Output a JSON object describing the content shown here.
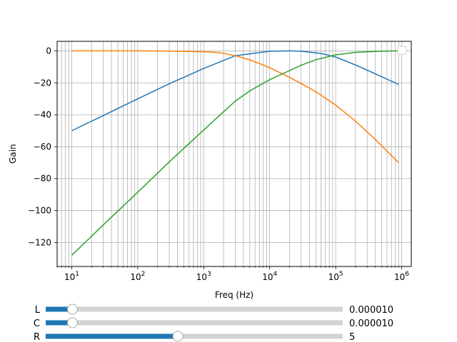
{
  "chart_data": {
    "type": "line",
    "title": "",
    "xlabel": "Freq (Hz)",
    "ylabel": "Gain",
    "xscale": "log",
    "xlim": [
      6,
      1400000
    ],
    "ylim": [
      -135,
      6
    ],
    "x_ticks": [
      10,
      100,
      1000,
      10000,
      100000,
      1000000
    ],
    "x_tick_labels": [
      {
        "base": "10",
        "exp": "1"
      },
      {
        "base": "10",
        "exp": "2"
      },
      {
        "base": "10",
        "exp": "3"
      },
      {
        "base": "10",
        "exp": "4"
      },
      {
        "base": "10",
        "exp": "5"
      },
      {
        "base": "10",
        "exp": "6"
      }
    ],
    "y_ticks": [
      0,
      -20,
      -40,
      -60,
      -80,
      -100,
      -120
    ],
    "y_tick_labels": [
      "0",
      "−20",
      "−40",
      "−60",
      "−80",
      "−100",
      "−120"
    ],
    "grid": true,
    "legend": "top-right",
    "series": [
      {
        "color": "#1f77b4",
        "x": [
          10,
          30,
          100,
          300,
          1000,
          3000,
          10000,
          20000,
          30000,
          60000,
          100000,
          200000,
          400000,
          900000
        ],
        "y": [
          -50,
          -40.5,
          -30,
          -20.6,
          -11,
          -3,
          -0.2,
          0,
          -0.2,
          -1.6,
          -3.8,
          -8.8,
          -14.4,
          -21
        ]
      },
      {
        "color": "#ff7f0e",
        "x": [
          10,
          100,
          300,
          1000,
          1500,
          2000,
          3000,
          5000,
          7000,
          10000,
          20000,
          30000,
          50000,
          100000,
          200000,
          400000,
          900000
        ],
        "y": [
          0,
          0,
          -0.1,
          -0.5,
          -0.9,
          -1.5,
          -3,
          -5.6,
          -7.9,
          -10.5,
          -16.6,
          -20.4,
          -25.6,
          -33.9,
          -44,
          -55.5,
          -70
        ]
      },
      {
        "color": "#2ca02c",
        "x": [
          10,
          30,
          100,
          300,
          1000,
          2000,
          3000,
          5000,
          10000,
          20000,
          30000,
          50000,
          100000,
          200000,
          500000,
          900000
        ],
        "y": [
          -128,
          -109,
          -88.5,
          -69.5,
          -49.5,
          -38.1,
          -31.5,
          -25,
          -18,
          -12.3,
          -9,
          -5.5,
          -2.5,
          -0.9,
          -0.2,
          0
        ]
      }
    ]
  },
  "sliders": [
    {
      "label": "L",
      "value_text": "0.000010",
      "fraction": 0.09,
      "fill_color": "#1f77b4"
    },
    {
      "label": "C",
      "value_text": "0.000010",
      "fraction": 0.09,
      "fill_color": "#1f77b4"
    },
    {
      "label": "R",
      "value_text": "5",
      "fraction": 0.445,
      "fill_color": "#1f77b4"
    }
  ]
}
